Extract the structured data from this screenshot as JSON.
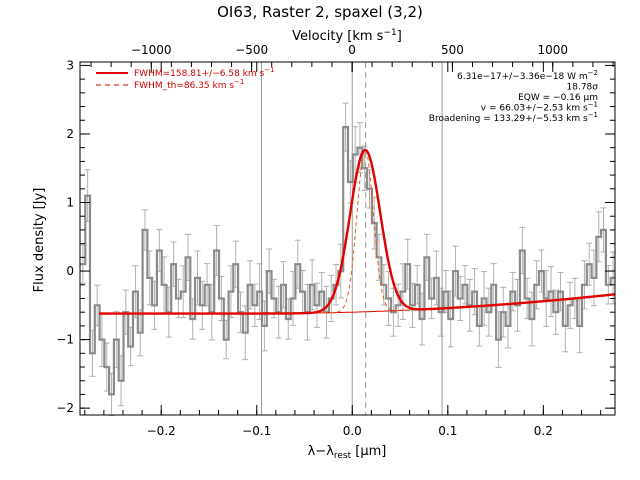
{
  "chart_data": {
    "type": "line",
    "title": "OI63, Raster 2, spaxel (3,2)",
    "xlabel": "λ−λ",
    "xlabel_sub": "rest",
    "xlabel_unit": " [μm]",
    "ylabel": "Flux density [Jy]",
    "top_axis_label": "Velocity [km s",
    "top_axis_label_sup": "−1",
    "top_axis_label_end": "]",
    "xlim": [
      -0.285,
      0.275
    ],
    "ylim": [
      -2.1,
      3.05
    ],
    "top_xlim": [
      -1355,
      1310
    ],
    "x_ticks": [
      -0.2,
      -0.1,
      0.0,
      0.1,
      0.2
    ],
    "x_tick_labels": [
      "−0.2",
      "−0.1",
      "0.0",
      "0.1",
      "0.2"
    ],
    "y_ticks": [
      -2,
      -1,
      0,
      1,
      2,
      3
    ],
    "y_tick_labels": [
      "−2",
      "−1",
      "0",
      "1",
      "2",
      "3"
    ],
    "top_ticks": [
      -1000,
      -500,
      0,
      500,
      1000
    ],
    "top_tick_labels": [
      "−1000",
      "−500",
      "0",
      "500",
      "1000"
    ],
    "vertical_lines": [
      -0.095,
      0.0,
      0.094
    ],
    "center_line": 0.014,
    "colors": {
      "data": "#8a8a8a",
      "errorbar": "#b0b0b0",
      "fit": "#e00000",
      "component": "#e06020",
      "refline": "#9a9a9a"
    },
    "legend": [
      {
        "label": "FWHM=158.81+/−6.58 km s",
        "sup": "−1",
        "style": "solid"
      },
      {
        "label": "FWHM_th=86.35 km s",
        "sup": "−1",
        "style": "dashed"
      }
    ],
    "legend_placement": "top-left",
    "annotations": [
      {
        "text": "6.31e−17+/−3.36e−18 W m",
        "sup": "−2"
      },
      {
        "text": "18.78σ",
        "sup": ""
      },
      {
        "text": "EQW = −0.16 μm",
        "sup": ""
      },
      {
        "text": "v = 66.03+/−2.53 km s",
        "sup": "−1"
      },
      {
        "text": "Broadening = 133.29+/−5.53 km s",
        "sup": "−1"
      }
    ],
    "annotation_placement": "top-right",
    "series": [
      {
        "kind": "data_steps",
        "x": [
          -0.282,
          -0.277,
          -0.272,
          -0.267,
          -0.262,
          -0.257,
          -0.252,
          -0.247,
          -0.242,
          -0.237,
          -0.232,
          -0.227,
          -0.222,
          -0.217,
          -0.212,
          -0.207,
          -0.202,
          -0.197,
          -0.192,
          -0.187,
          -0.182,
          -0.177,
          -0.172,
          -0.167,
          -0.162,
          -0.157,
          -0.152,
          -0.147,
          -0.142,
          -0.137,
          -0.132,
          -0.127,
          -0.122,
          -0.117,
          -0.112,
          -0.107,
          -0.102,
          -0.097,
          -0.092,
          -0.087,
          -0.082,
          -0.077,
          -0.072,
          -0.067,
          -0.062,
          -0.057,
          -0.052,
          -0.047,
          -0.042,
          -0.037,
          -0.032,
          -0.027,
          -0.022,
          -0.017,
          -0.012,
          -0.007,
          -0.002,
          0.003,
          0.008,
          0.013,
          0.018,
          0.023,
          0.028,
          0.033,
          0.038,
          0.043,
          0.048,
          0.053,
          0.058,
          0.063,
          0.068,
          0.073,
          0.078,
          0.083,
          0.088,
          0.093,
          0.098,
          0.103,
          0.108,
          0.113,
          0.118,
          0.123,
          0.128,
          0.133,
          0.138,
          0.143,
          0.148,
          0.153,
          0.158,
          0.163,
          0.168,
          0.173,
          0.178,
          0.183,
          0.188,
          0.193,
          0.198,
          0.203,
          0.208,
          0.213,
          0.218,
          0.223,
          0.228,
          0.233,
          0.238,
          0.243,
          0.248,
          0.253,
          0.258,
          0.263,
          0.268,
          0.273
        ],
        "y": [
          0.1,
          1.1,
          -1.2,
          -0.5,
          -1.0,
          -1.4,
          -1.8,
          -1.0,
          -1.6,
          -0.6,
          -1.1,
          -0.3,
          -0.9,
          0.6,
          -0.1,
          -0.5,
          0.3,
          -0.2,
          -0.6,
          0.1,
          -0.4,
          -0.3,
          0.2,
          -0.7,
          -0.1,
          -0.5,
          -0.2,
          -0.6,
          0.3,
          -0.4,
          -1.0,
          -0.3,
          0.1,
          -0.6,
          -0.9,
          -0.2,
          -0.5,
          -0.3,
          -0.8,
          0.0,
          -0.4,
          -0.6,
          -0.2,
          -0.7,
          -0.4,
          0.1,
          -0.3,
          -0.6,
          -0.2,
          -0.5,
          -0.3,
          -0.6,
          -0.4,
          -0.2,
          0.0,
          2.1,
          1.3,
          1.7,
          1.8,
          1.5,
          1.2,
          0.7,
          0.2,
          -0.2,
          -0.4,
          -0.6,
          -0.5,
          -0.3,
          0.1,
          -0.5,
          -0.2,
          -0.7,
          0.2,
          -0.4,
          -0.1,
          -0.6,
          -0.3,
          -0.7,
          0.0,
          -0.4,
          -0.2,
          -0.5,
          -0.3,
          -0.8,
          -0.4,
          -0.6,
          -0.2,
          -1.0,
          -0.6,
          -0.8,
          -0.3,
          -0.5,
          0.3,
          -0.4,
          -0.7,
          -0.2,
          0.0,
          -0.4,
          -0.3,
          -0.6,
          -0.3,
          -0.8,
          -0.5,
          -0.4,
          -0.8,
          -0.2,
          0.1,
          -0.1,
          0.5,
          0.6,
          -0.2,
          -0.1
        ],
        "err": 0.35
      },
      {
        "kind": "total_fit",
        "baseline": {
          "a": -0.62,
          "x0": -0.1,
          "b": 2.0,
          "c": 3.2
        },
        "gauss": {
          "amp": 2.36,
          "center": 0.0135,
          "sigma": 0.0158
        }
      },
      {
        "kind": "gauss_thermal",
        "amp": 2.36,
        "center": 0.0135,
        "sigma": 0.0086
      },
      {
        "kind": "gauss_components",
        "amp": 2.36,
        "center": 0.0135,
        "sigma": 0.0158
      }
    ]
  }
}
